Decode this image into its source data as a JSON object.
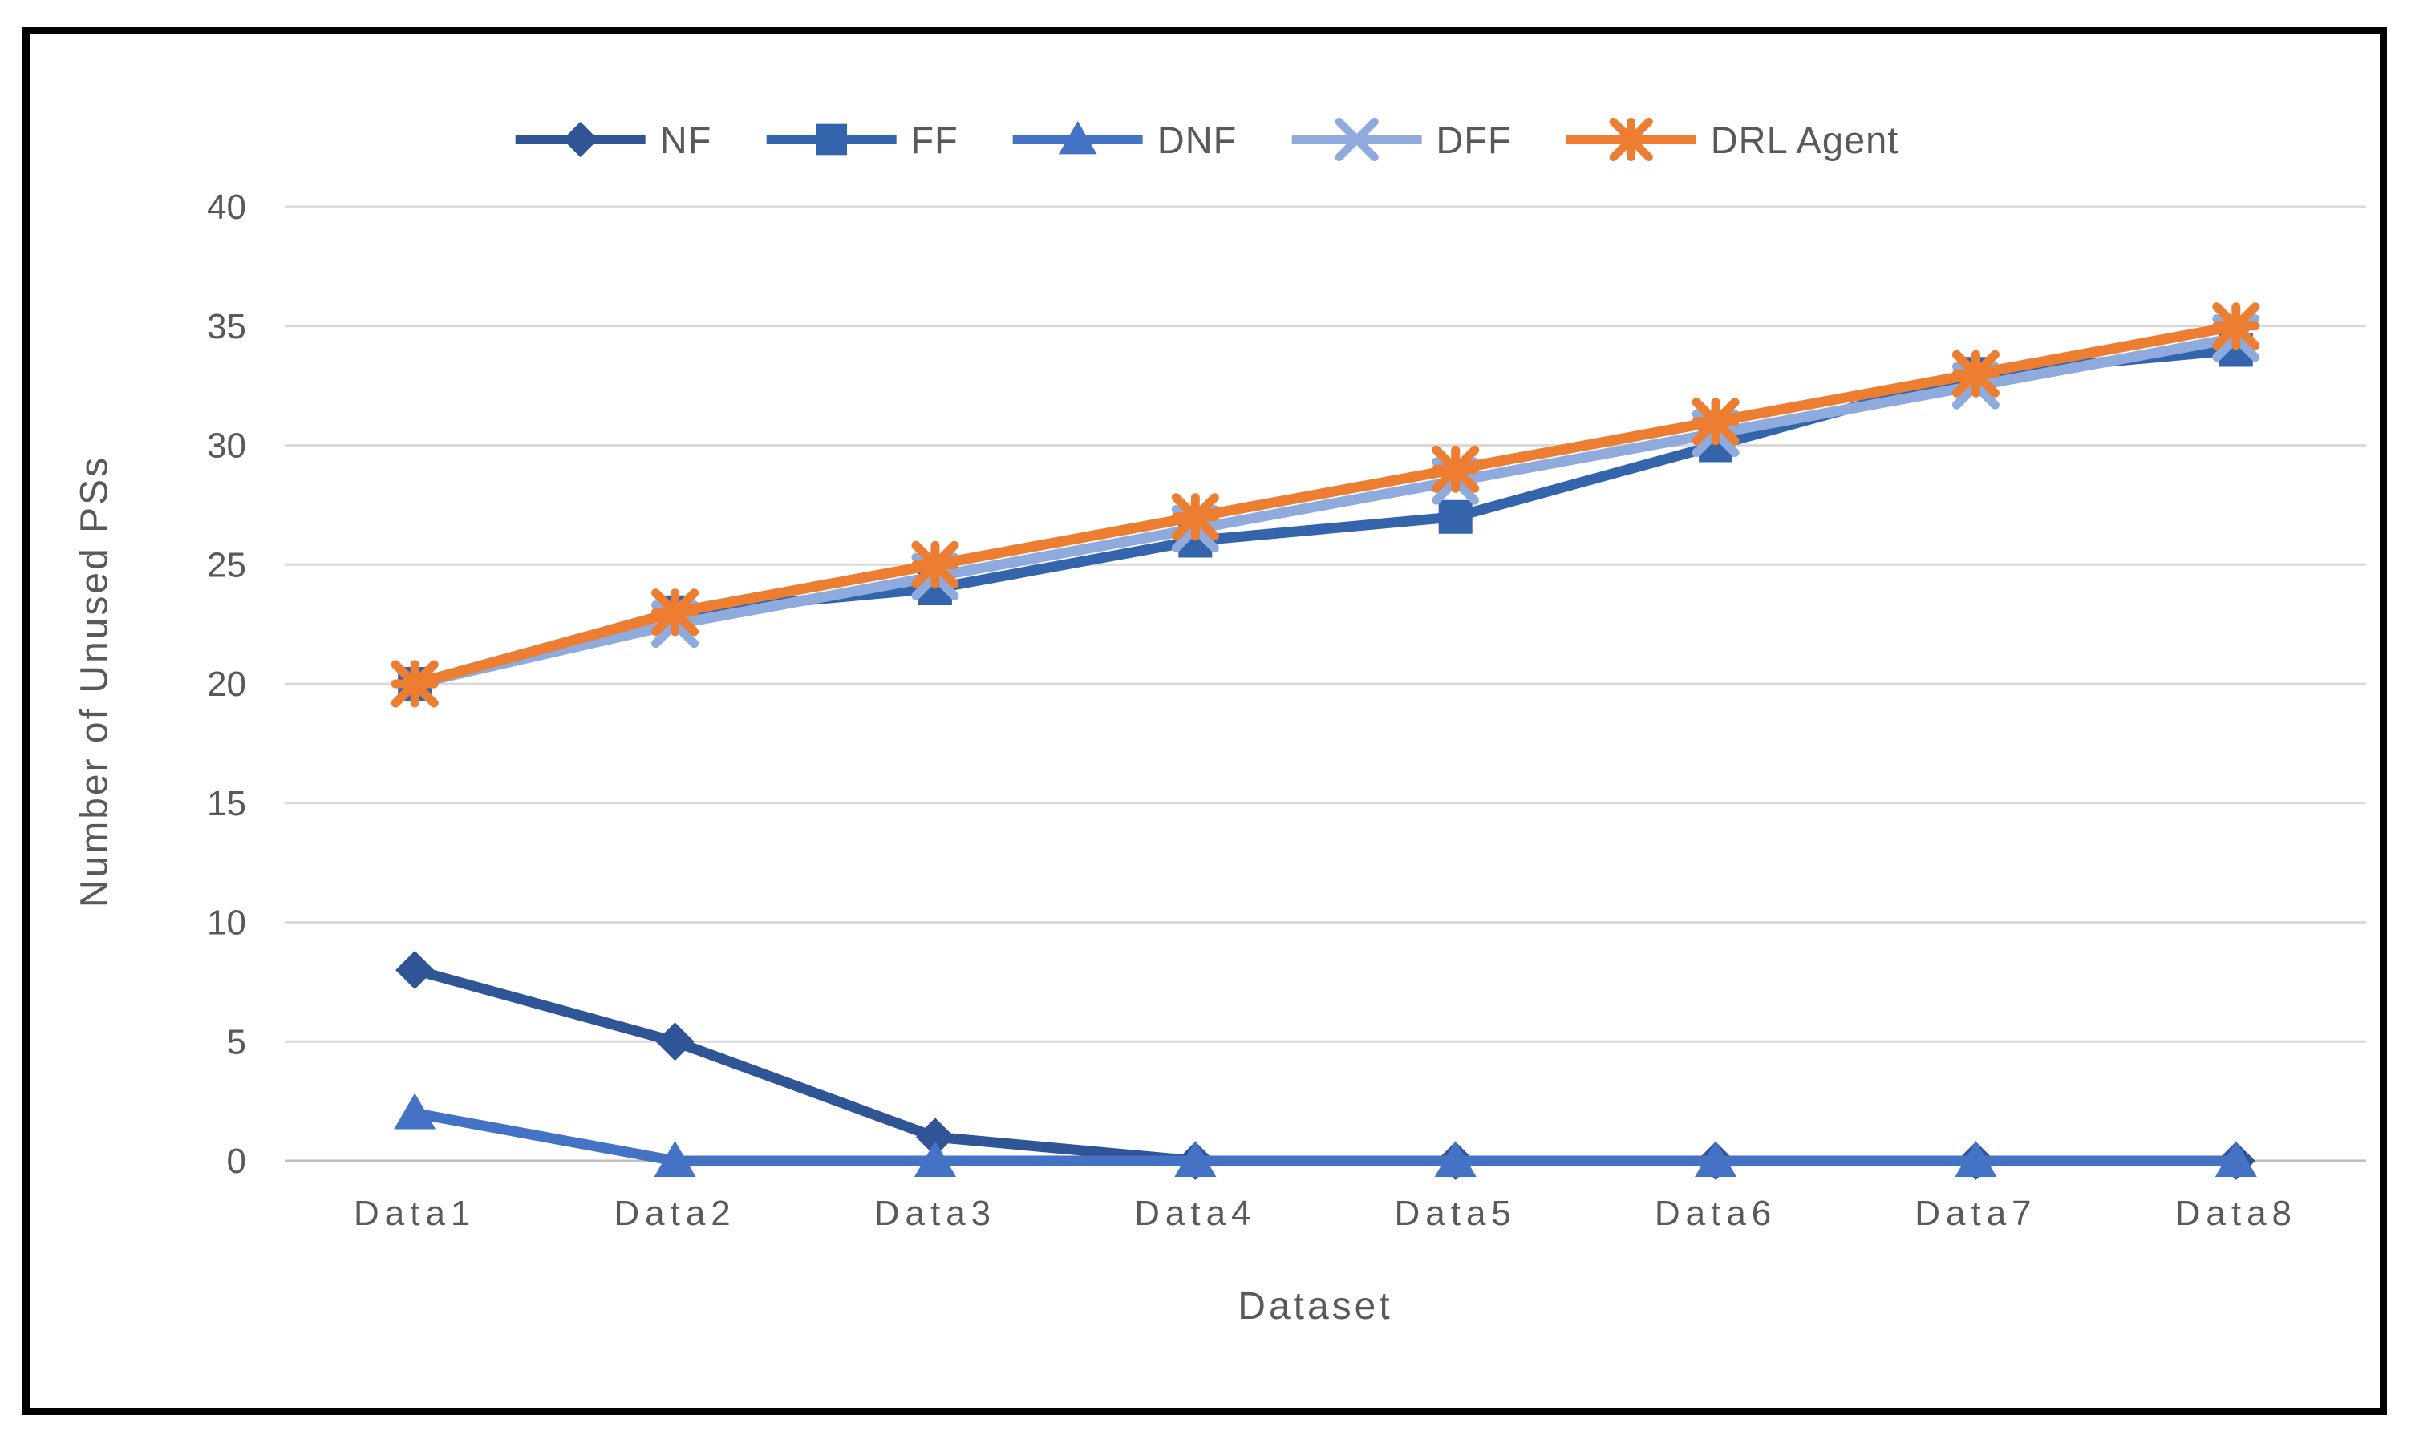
{
  "chart_data": {
    "type": "line",
    "title": "",
    "xlabel": "Dataset",
    "ylabel": "Number of Unused PSs",
    "categories": [
      "Data1",
      "Data2",
      "Data3",
      "Data4",
      "Data5",
      "Data6",
      "Data7",
      "Data8"
    ],
    "ylim": [
      0,
      40
    ],
    "ytick_step": 5,
    "yticks": [
      0,
      5,
      10,
      15,
      20,
      25,
      30,
      35,
      40
    ],
    "grid": true,
    "legend_position": "top",
    "axis_text_color": "#595959",
    "gridline_color": "#D9D9D9",
    "axis_line_color": "#BFBFBF",
    "series": [
      {
        "name": "NF",
        "color": "#2F5597",
        "marker": "diamond",
        "values": [
          8,
          5,
          1,
          0,
          0,
          0,
          0,
          0
        ]
      },
      {
        "name": "FF",
        "color": "#3464AC",
        "marker": "square",
        "values": [
          20,
          23,
          24,
          26,
          27,
          30,
          33,
          34
        ]
      },
      {
        "name": "DNF",
        "color": "#4472C4",
        "marker": "triangle",
        "values": [
          2,
          0,
          0,
          0,
          0,
          0,
          0,
          0
        ]
      },
      {
        "name": "DFF",
        "color": "#8FAADC",
        "marker": "x",
        "values": [
          20,
          22.5,
          24.5,
          26.5,
          28.5,
          30.5,
          32.5,
          34.5
        ]
      },
      {
        "name": "DRL Agent",
        "color": "#ED7D31",
        "marker": "star",
        "values": [
          20,
          23,
          25,
          27,
          29,
          31,
          33,
          35
        ]
      }
    ]
  }
}
